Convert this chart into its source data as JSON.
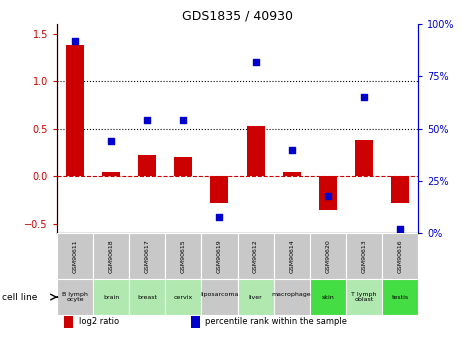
{
  "title": "GDS1835 / 40930",
  "gsm_ids": [
    "GSM90611",
    "GSM90618",
    "GSM90617",
    "GSM90615",
    "GSM90619",
    "GSM90612",
    "GSM90614",
    "GSM90620",
    "GSM90613",
    "GSM90616"
  ],
  "cell_lines": [
    "B lymph\nocyte",
    "brain",
    "breast",
    "cervix",
    "liposarcoma\n",
    "liver",
    "macrophage\n",
    "skin",
    "T lymph\noblast",
    "testis"
  ],
  "log2_ratio": [
    1.38,
    0.05,
    0.22,
    0.2,
    -0.28,
    0.53,
    0.05,
    -0.35,
    0.38,
    -0.28
  ],
  "percentile_rank": [
    92,
    44,
    54,
    54,
    8,
    82,
    40,
    18,
    65,
    2
  ],
  "bar_color": "#cc0000",
  "dot_color": "#0000cc",
  "ylim_left": [
    -0.6,
    1.6
  ],
  "ylim_right": [
    0,
    100
  ],
  "yticks_left": [
    -0.5,
    0.0,
    0.5,
    1.0,
    1.5
  ],
  "yticks_right": [
    0,
    25,
    50,
    75,
    100
  ],
  "hlines": [
    0.5,
    1.0
  ],
  "cell_line_colors": [
    "#c8c8c8",
    "#b0e8b0",
    "#b0e8b0",
    "#b0e8b0",
    "#c8c8c8",
    "#b0e8b0",
    "#c8c8c8",
    "#44dd44",
    "#b0e8b0",
    "#44dd44"
  ],
  "gsm_bg_color": "#c8c8c8"
}
